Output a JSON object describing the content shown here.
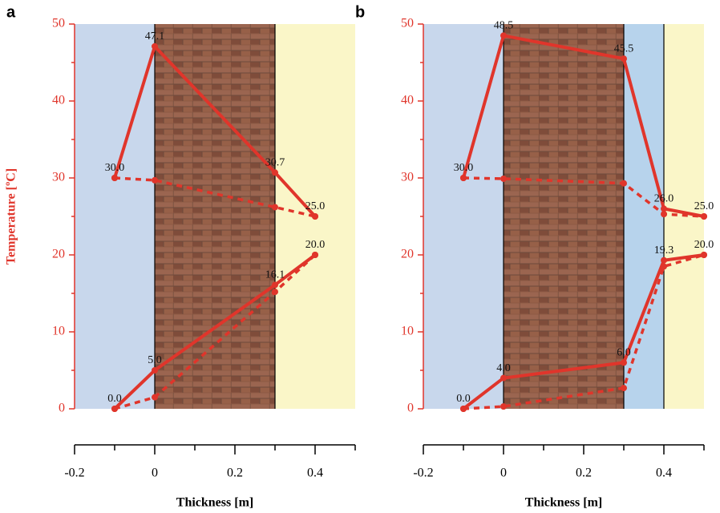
{
  "chart_data": [
    {
      "type": "line",
      "panel": "a",
      "ylabel": "Temperature [ºC]",
      "xlabel": "Thickness [m]",
      "x": [
        -0.1,
        0,
        0.3,
        0.4
      ],
      "xlim": [
        -0.2,
        0.5
      ],
      "xticks": [
        -0.2,
        0,
        0.2,
        0.4
      ],
      "xminorticks": [
        -0.1,
        0.1,
        0.3,
        0.5
      ],
      "ylim": [
        0,
        50
      ],
      "yticks": [
        0,
        10,
        20,
        30,
        40,
        50
      ],
      "yminorticks": [
        5,
        15,
        25,
        35,
        45
      ],
      "layers": [
        {
          "xlim": [
            -0.2,
            0
          ],
          "color": "#c8d7ec"
        },
        {
          "xlim": [
            0,
            0.3
          ],
          "color": "brick"
        },
        {
          "xlim": [
            0.3,
            0.5
          ],
          "color": "#faf6c8"
        }
      ],
      "series": [
        {
          "color": "#e0352b",
          "dashed": false,
          "values": [
            30,
            47.1,
            30.7,
            25
          ],
          "value_labels": [
            "30.0",
            "47.1",
            "30.7",
            "25.0"
          ]
        },
        {
          "color": "#e0352b",
          "dashed": true,
          "values": [
            30,
            29.7,
            26.2,
            25
          ]
        },
        {
          "color": "#e0352b",
          "dashed": false,
          "values": [
            0,
            5,
            16.1,
            20
          ],
          "value_labels": [
            "0.0",
            "5.0",
            "16.1",
            "20.0"
          ]
        },
        {
          "color": "#e0352b",
          "dashed": true,
          "values": [
            0,
            1.5,
            15.2,
            20
          ]
        }
      ]
    },
    {
      "type": "line",
      "panel": "b",
      "xlabel": "Thickness [m]",
      "x": [
        -0.1,
        0,
        0.3,
        0.4,
        0.5
      ],
      "xlim": [
        -0.2,
        0.5
      ],
      "xticks": [
        -0.2,
        0,
        0.2,
        0.4
      ],
      "xminorticks": [
        -0.1,
        0.1,
        0.3,
        0.5
      ],
      "ylim": [
        0,
        50
      ],
      "yticks": [
        0,
        10,
        20,
        30,
        40,
        50
      ],
      "yminorticks": [
        5,
        15,
        25,
        35,
        45
      ],
      "layers": [
        {
          "xlim": [
            -0.2,
            0
          ],
          "color": "#c8d7ec"
        },
        {
          "xlim": [
            0,
            0.3
          ],
          "color": "brick"
        },
        {
          "xlim": [
            0.3,
            0.4
          ],
          "color": "#b7d3ec"
        },
        {
          "xlim": [
            0.4,
            0.5
          ],
          "color": "#faf6c8"
        }
      ],
      "series": [
        {
          "color": "#e0352b",
          "dashed": false,
          "values": [
            30,
            48.5,
            45.5,
            26,
            25
          ],
          "value_labels": [
            "30.0",
            "48.5",
            "45.5",
            "26.0",
            "25.0"
          ]
        },
        {
          "color": "#e0352b",
          "dashed": true,
          "values": [
            30,
            29.9,
            29.3,
            25.3,
            25
          ]
        },
        {
          "color": "#e0352b",
          "dashed": false,
          "values": [
            0,
            4,
            6,
            19.3,
            20
          ],
          "value_labels": [
            "0.0",
            "4.0",
            "6.0",
            "19.3",
            "20.0"
          ]
        },
        {
          "color": "#e0352b",
          "dashed": true,
          "values": [
            0,
            0.3,
            2.7,
            18.5,
            20
          ]
        }
      ]
    }
  ]
}
